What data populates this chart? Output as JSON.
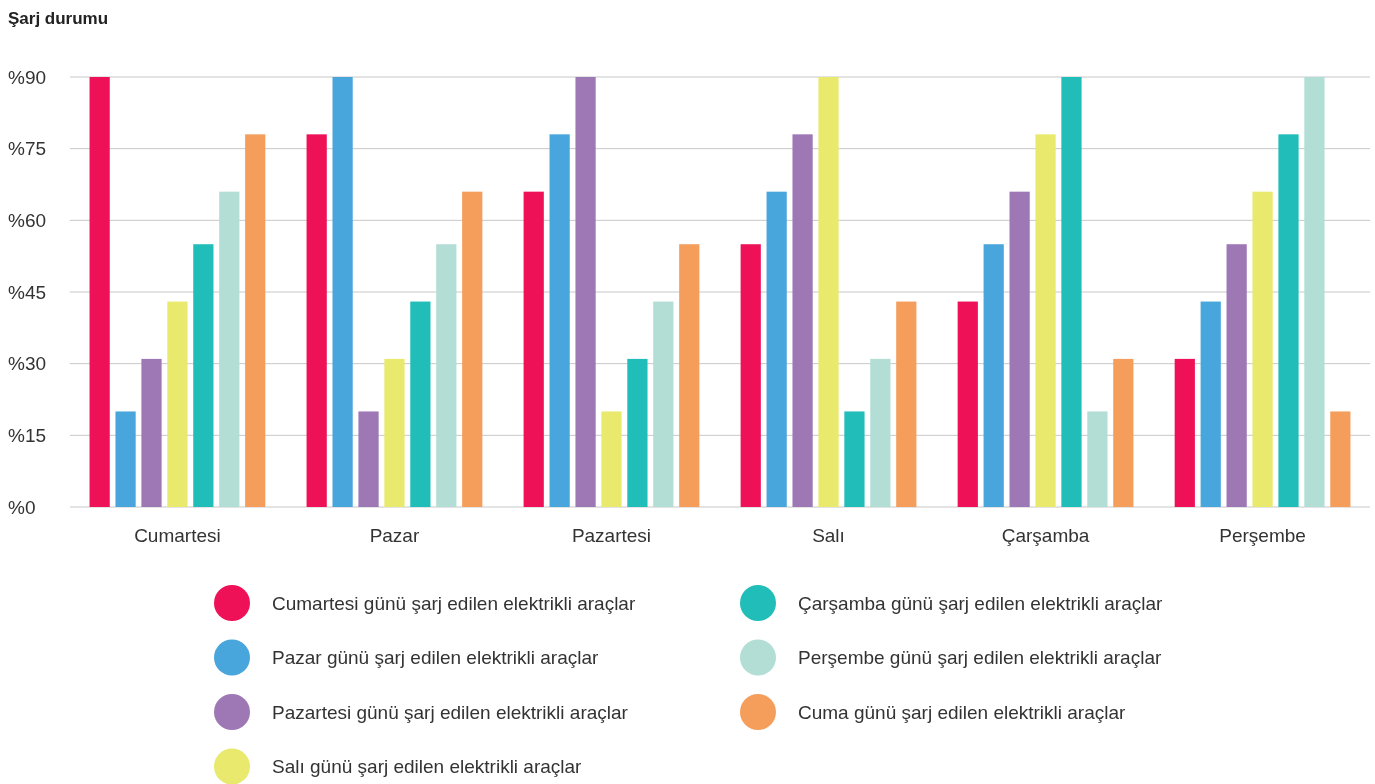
{
  "chart_data": {
    "type": "bar",
    "title": "Şarj durumu",
    "categories": [
      "Cumartesi",
      "Pazar",
      "Pazartesi",
      "Salı",
      "Çarşamba",
      "Perşembe"
    ],
    "series": [
      {
        "name": "Cumartesi günü şarj edilen elektrikli araçlar",
        "color": "#ee1157",
        "values": [
          90,
          78,
          66,
          55,
          43,
          31
        ]
      },
      {
        "name": "Pazar günü şarj edilen elektrikli araçlar",
        "color": "#48a6dc",
        "values": [
          20,
          90,
          78,
          66,
          55,
          43
        ]
      },
      {
        "name": "Pazartesi günü şarj edilen elektrikli araçlar",
        "color": "#9e77b5",
        "values": [
          31,
          20,
          90,
          78,
          66,
          55
        ]
      },
      {
        "name": "Salı günü şarj edilen elektrikli araçlar",
        "color": "#e9e96e",
        "values": [
          43,
          31,
          20,
          90,
          78,
          66
        ]
      },
      {
        "name": "Çarşamba günü şarj edilen elektrikli araçlar",
        "color": "#20bdb9",
        "values": [
          55,
          43,
          31,
          20,
          90,
          78
        ]
      },
      {
        "name": "Perşembe günü şarj edilen elektrikli araçlar",
        "color": "#b2ded5",
        "values": [
          66,
          55,
          43,
          31,
          20,
          90
        ]
      },
      {
        "name": "Cuma günü şarj edilen elektrikli araçlar",
        "color": "#f59e5c",
        "values": [
          78,
          66,
          55,
          43,
          31,
          20
        ]
      }
    ],
    "ylim": [
      0,
      90
    ],
    "yticks": [
      {
        "value": 0,
        "label": "%0"
      },
      {
        "value": 15,
        "label": "%15"
      },
      {
        "value": 30,
        "label": "%30"
      },
      {
        "value": 45,
        "label": "%45"
      },
      {
        "value": 60,
        "label": "%60"
      },
      {
        "value": 75,
        "label": "%75"
      },
      {
        "value": 90,
        "label": "%90"
      }
    ],
    "grid": "y",
    "legend": "bottom"
  }
}
